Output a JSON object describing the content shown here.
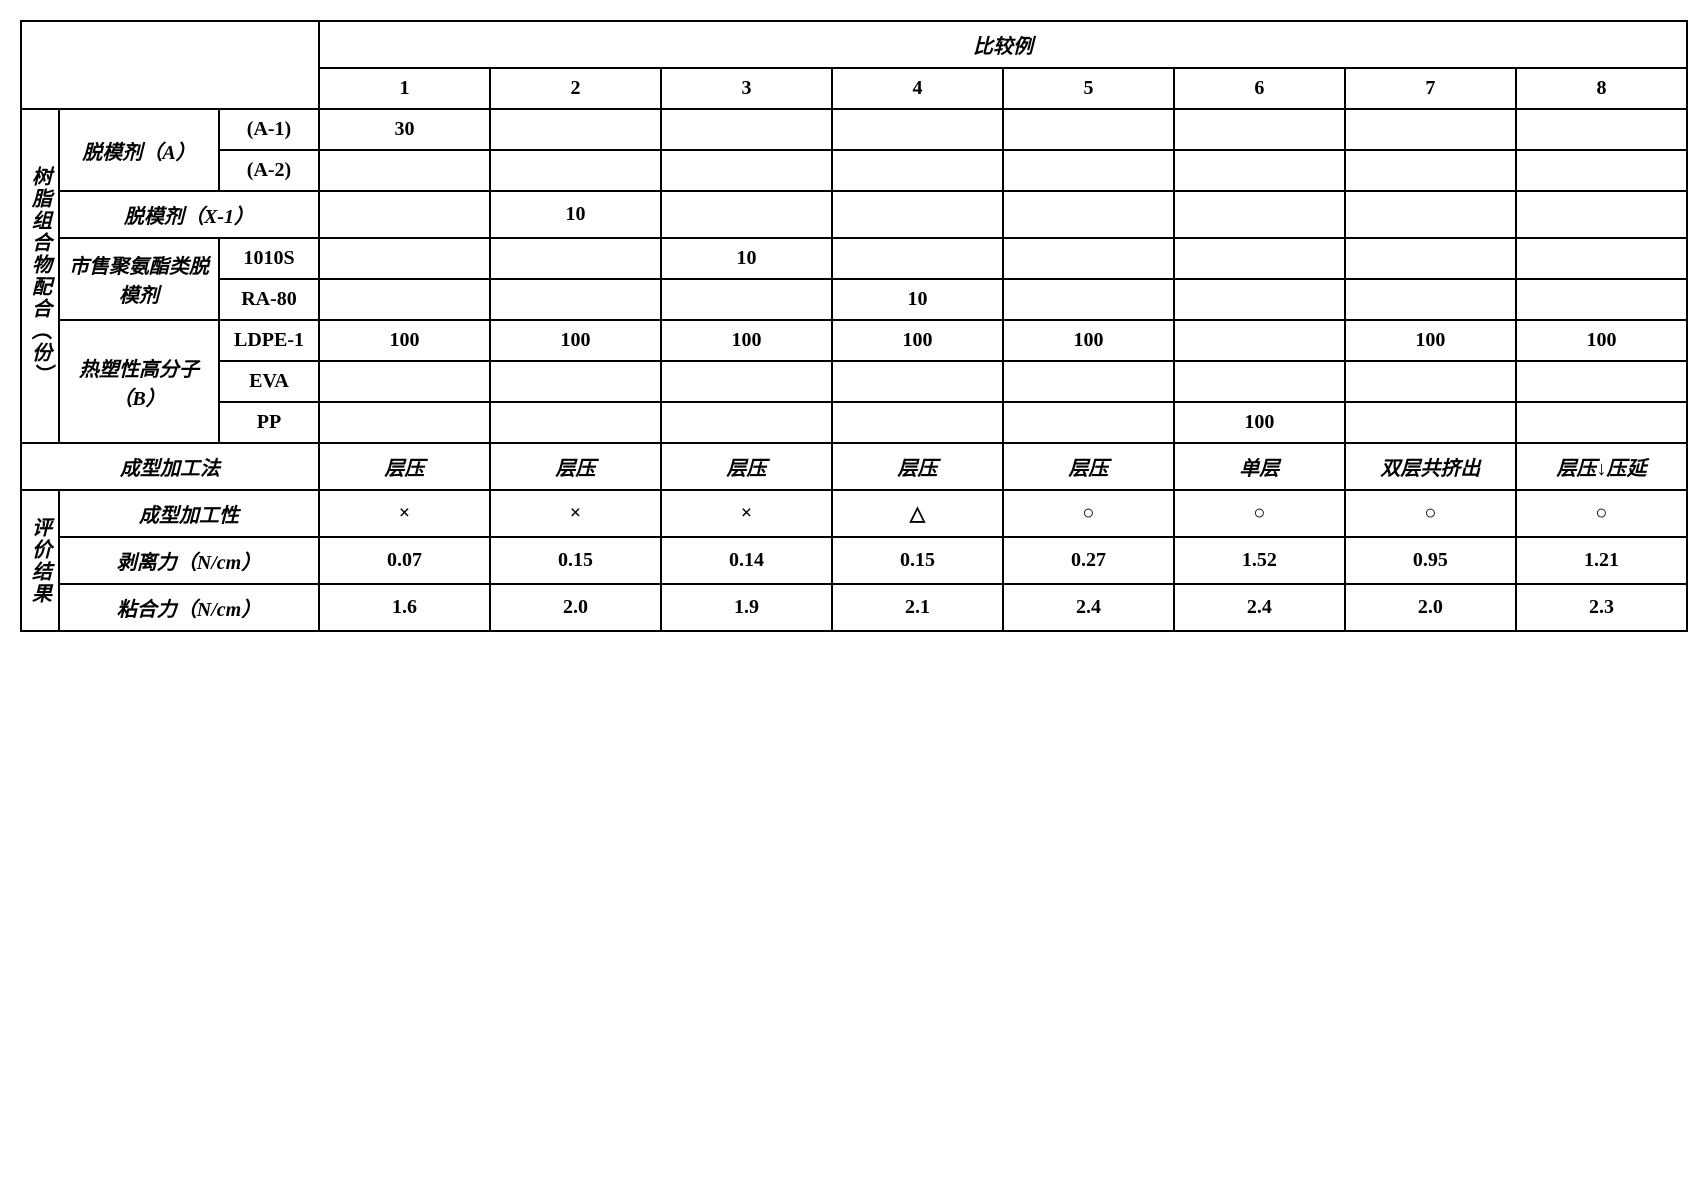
{
  "header": {
    "group_title": "比较例",
    "cols": [
      "1",
      "2",
      "3",
      "4",
      "5",
      "6",
      "7",
      "8"
    ]
  },
  "sections": {
    "composition_label": "树脂组合物配合（份）",
    "release_agent_a": "脱模剂（A）",
    "a1": "(A-1)",
    "a2": "(A-2)",
    "release_agent_x": "脱模剂（X-1）",
    "commercial_pu": "市售聚氨酯类脱模剂",
    "s1010": "1010S",
    "ra80": "RA-80",
    "thermoplastic": "热塑性高分子（B）",
    "ldpe": "LDPE-1",
    "eva": "EVA",
    "pp": "PP",
    "forming": "成型加工法",
    "eval_label": "评价结果",
    "formability": "成型加工性",
    "peel": "剥离力（N/cm）",
    "adhesion": "粘合力（N/cm）"
  },
  "rows": {
    "a1": [
      "30",
      "",
      "",
      "",
      "",
      "",
      "",
      ""
    ],
    "a2": [
      "",
      "",
      "",
      "",
      "",
      "",
      "",
      ""
    ],
    "x1": [
      "",
      "10",
      "",
      "",
      "",
      "",
      "",
      ""
    ],
    "s1010": [
      "",
      "",
      "10",
      "",
      "",
      "",
      "",
      ""
    ],
    "ra80": [
      "",
      "",
      "",
      "10",
      "",
      "",
      "",
      ""
    ],
    "ldpe": [
      "100",
      "100",
      "100",
      "100",
      "100",
      "",
      "100",
      "100"
    ],
    "eva": [
      "",
      "",
      "",
      "",
      "",
      "",
      "",
      ""
    ],
    "pp": [
      "",
      "",
      "",
      "",
      "",
      "100",
      "",
      ""
    ],
    "forming": [
      "层压",
      "层压",
      "层压",
      "层压",
      "层压",
      "单层",
      "双层共挤出",
      "层压↓压延"
    ],
    "formability": [
      "×",
      "×",
      "×",
      "△",
      "○",
      "○",
      "○",
      "○"
    ],
    "peel": [
      "0.07",
      "0.15",
      "0.14",
      "0.15",
      "0.27",
      "1.52",
      "0.95",
      "1.21"
    ],
    "adhesion": [
      "1.6",
      "2.0",
      "1.9",
      "2.1",
      "2.4",
      "2.4",
      "2.0",
      "2.3"
    ]
  }
}
